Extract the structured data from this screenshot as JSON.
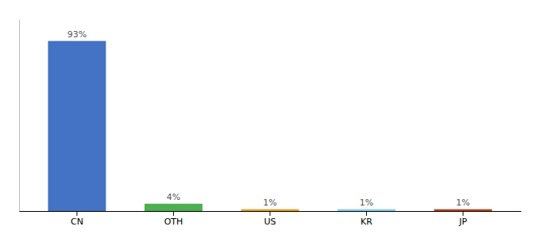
{
  "chart_data": {
    "type": "bar",
    "categories": [
      "CN",
      "OTH",
      "US",
      "KR",
      "JP"
    ],
    "values": [
      93,
      4,
      1,
      1,
      1
    ],
    "value_labels": [
      "93%",
      "4%",
      "1%",
      "1%",
      "1%"
    ],
    "data_labels": true,
    "colors": [
      "#4472C4",
      "#4CAF50",
      "#E8A020",
      "#87CEEB",
      "#B5451B"
    ],
    "ylim": [
      0,
      105
    ],
    "grid": false,
    "tick_labels": "x"
  }
}
